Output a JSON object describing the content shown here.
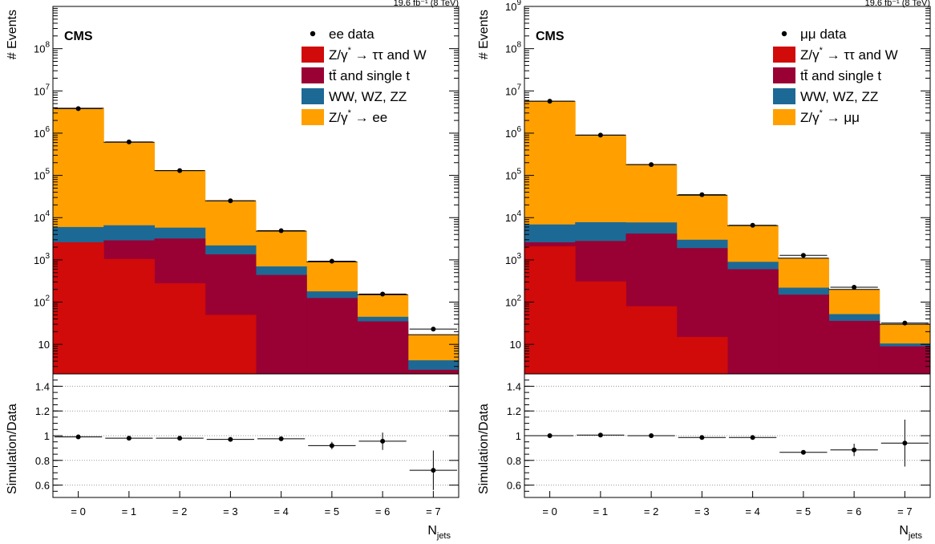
{
  "colors": {
    "ztautau": "#d10a0a",
    "top": "#990033",
    "diboson": "#1d6996",
    "zll": "#ffa000",
    "data": "#000000",
    "grid": "#999999"
  },
  "chart_data": [
    {
      "type": "bar",
      "panel": "left",
      "cms_label": "CMS",
      "lumi_label": "19.6 fb⁻¹ (8 TeV)",
      "ylabel": "# Events",
      "xlabel": "N",
      "xlabel_sub": "jets",
      "ratio_ylabel": "Simulation/Data",
      "categories": [
        "= 0",
        "= 1",
        "= 2",
        "= 3",
        "= 4",
        "= 5",
        "= 6",
        "= 7"
      ],
      "ylim": [
        2,
        1000000000
      ],
      "yscale": "log",
      "yticks": [
        {
          "value": 10,
          "label": "10"
        },
        {
          "value": 100,
          "base": "10",
          "exp": "2"
        },
        {
          "value": 1000,
          "base": "10",
          "exp": "3"
        },
        {
          "value": 10000,
          "base": "10",
          "exp": "4"
        },
        {
          "value": 100000,
          "base": "10",
          "exp": "5"
        },
        {
          "value": 1000000,
          "base": "10",
          "exp": "6"
        },
        {
          "value": 10000000,
          "base": "10",
          "exp": "7"
        },
        {
          "value": 100000000,
          "base": "10",
          "exp": "8"
        }
      ],
      "stack_cumulative": true,
      "series": [
        {
          "name": "Z/γ* → ee",
          "key": "zll",
          "values": [
            3900000,
            610000,
            130000,
            25000,
            4800,
            900,
            150,
            17
          ]
        },
        {
          "name": "WW, WZ, ZZ",
          "key": "diboson",
          "values": [
            6000,
            6600,
            5800,
            2200,
            700,
            180,
            45,
            4.2
          ]
        },
        {
          "name": "tt̄ and single t",
          "key": "top",
          "values": [
            2600,
            2900,
            3200,
            1350,
            440,
            125,
            35,
            2.5
          ]
        },
        {
          "name": "Z/γ* → ττ and W",
          "key": "ztautau",
          "values": [
            2600,
            1050,
            280,
            50,
            2,
            2,
            2,
            2
          ]
        }
      ],
      "data_series": {
        "name": "ee data",
        "values": [
          3800000,
          620000,
          130000,
          25000,
          4900,
          930,
          155,
          23
        ]
      },
      "legend_placement": "top-right",
      "legend": [
        {
          "key": "data",
          "text": "ee data",
          "marker": "dot"
        },
        {
          "key": "ztautau",
          "pre": "Z/γ",
          "sup": "*",
          "post": " → ττ and W",
          "marker": "box"
        },
        {
          "key": "top",
          "pre": "tt̄ and single t",
          "marker": "box"
        },
        {
          "key": "diboson",
          "pre": "WW, WZ, ZZ",
          "marker": "box"
        },
        {
          "key": "zll",
          "pre": "Z/γ",
          "sup": "*",
          "post": " → ee",
          "marker": "box"
        }
      ],
      "ratio": {
        "ylim": [
          0.5,
          1.5
        ],
        "yticks": [
          0.6,
          0.8,
          1,
          1.2,
          1.4
        ],
        "ytick_labels": [
          "0.6",
          "0.8",
          "1",
          "1.2",
          "1.4"
        ],
        "grid": true,
        "values": [
          0.99,
          0.98,
          0.98,
          0.97,
          0.975,
          0.92,
          0.955,
          0.72
        ],
        "errors": [
          0.005,
          0.006,
          0.008,
          0.01,
          0.015,
          0.03,
          0.07,
          0.16
        ]
      }
    },
    {
      "type": "bar",
      "panel": "right",
      "cms_label": "CMS",
      "lumi_label": "19.6 fb⁻¹ (8 TeV)",
      "ylabel": "# Events",
      "xlabel": "N",
      "xlabel_sub": "jets",
      "ratio_ylabel": "Simulation/Data",
      "categories": [
        "= 0",
        "= 1",
        "= 2",
        "= 3",
        "= 4",
        "= 5",
        "= 6",
        "= 7"
      ],
      "ylim": [
        2,
        1000000000
      ],
      "yscale": "log",
      "yticks": [
        {
          "value": 10,
          "label": "10"
        },
        {
          "value": 100,
          "base": "10",
          "exp": "2"
        },
        {
          "value": 1000,
          "base": "10",
          "exp": "3"
        },
        {
          "value": 10000,
          "base": "10",
          "exp": "4"
        },
        {
          "value": 100000,
          "base": "10",
          "exp": "5"
        },
        {
          "value": 1000000,
          "base": "10",
          "exp": "6"
        },
        {
          "value": 10000000,
          "base": "10",
          "exp": "7"
        },
        {
          "value": 100000000,
          "base": "10",
          "exp": "8"
        },
        {
          "value": 1000000000,
          "base": "10",
          "exp": "9"
        }
      ],
      "stack_cumulative": true,
      "series": [
        {
          "name": "Z/γ* → μμ",
          "key": "zll",
          "values": [
            5700000,
            900000,
            180000,
            34000,
            6500,
            1100,
            200,
            30
          ]
        },
        {
          "name": "WW, WZ, ZZ",
          "key": "diboson",
          "values": [
            6900,
            7800,
            7700,
            3000,
            900,
            220,
            52,
            10.5
          ]
        },
        {
          "name": "tt̄ and single t",
          "key": "top",
          "values": [
            2600,
            2800,
            4200,
            1900,
            600,
            150,
            36,
            9
          ]
        },
        {
          "name": "Z/γ* → ττ and W",
          "key": "ztautau",
          "values": [
            2100,
            310,
            80,
            15,
            2,
            2,
            2,
            2
          ]
        }
      ],
      "data_series": {
        "name": "μμ data",
        "values": [
          5700000,
          900000,
          180000,
          35000,
          6600,
          1280,
          225,
          32
        ]
      },
      "legend_placement": "top-right",
      "legend": [
        {
          "key": "data",
          "text": "μμ data",
          "marker": "dot"
        },
        {
          "key": "ztautau",
          "pre": "Z/γ",
          "sup": "*",
          "post": " → ττ and W",
          "marker": "box"
        },
        {
          "key": "top",
          "pre": "tt̄ and single t",
          "marker": "box"
        },
        {
          "key": "diboson",
          "pre": "WW, WZ, ZZ",
          "marker": "box"
        },
        {
          "key": "zll",
          "pre": "Z/γ",
          "sup": "*",
          "post": " → μμ",
          "marker": "box"
        }
      ],
      "ratio": {
        "ylim": [
          0.5,
          1.5
        ],
        "yticks": [
          0.6,
          0.8,
          1,
          1.2,
          1.4
        ],
        "ytick_labels": [
          "0.6",
          "0.8",
          "1",
          "1.2",
          "1.4"
        ],
        "grid": true,
        "values": [
          1.0,
          1.005,
          1.0,
          0.985,
          0.985,
          0.865,
          0.885,
          0.94
        ],
        "errors": [
          0.004,
          0.005,
          0.006,
          0.008,
          0.01,
          0.012,
          0.05,
          0.19
        ]
      }
    }
  ]
}
